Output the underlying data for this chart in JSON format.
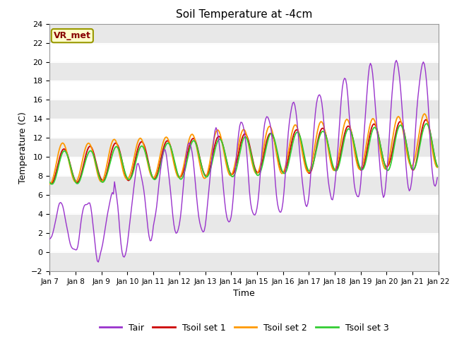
{
  "title": "Soil Temperature at -4cm",
  "xlabel": "Time",
  "ylabel": "Temperature (C)",
  "ylim": [
    -2,
    24
  ],
  "yticks": [
    -2,
    0,
    2,
    4,
    6,
    8,
    10,
    12,
    14,
    16,
    18,
    20,
    22,
    24
  ],
  "x_labels": [
    "Jan 7",
    "Jan 8",
    "Jan 9",
    "Jan 10",
    "Jan 11",
    "Jan 12",
    "Jan 13",
    "Jan 14",
    "Jan 15",
    "Jan 16",
    "Jan 17",
    "Jan 18",
    "Jan 19",
    "Jan 20",
    "Jan 21",
    "Jan 22"
  ],
  "figure_bg": "#ffffff",
  "plot_bg": "#ffffff",
  "grid_color": "#cccccc",
  "band_color": "#e8e8e8",
  "annotation_text": "VR_met",
  "annotation_bg": "#ffffcc",
  "annotation_border": "#999900",
  "annotation_text_color": "#880000",
  "colors": {
    "Tair": "#9933cc",
    "Tsoil1": "#cc0000",
    "Tsoil2": "#ff9900",
    "Tsoil3": "#33cc33"
  },
  "legend_labels": [
    "Tair",
    "Tsoil set 1",
    "Tsoil set 2",
    "Tsoil set 3"
  ]
}
